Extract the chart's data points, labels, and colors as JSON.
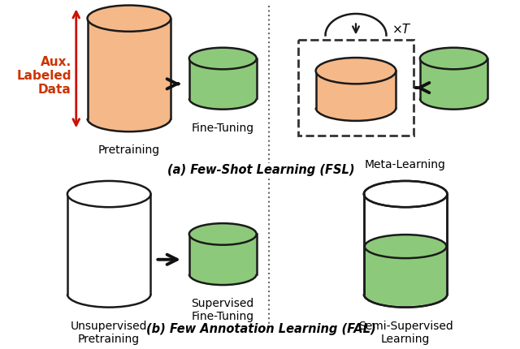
{
  "fig_width": 6.4,
  "fig_height": 4.31,
  "dpi": 100,
  "bg_color": "#ffffff",
  "orange_fill": "#F5B888",
  "green_fill": "#8DC97A",
  "white_fill": "#FFFFFF",
  "edge_color": "#1a1a1a",
  "red_color": "#CC1100",
  "aux_text_color": "#CC3300",
  "dotted_line_color": "#666666",
  "title_a": "(a) Few-Shot Learning (FSL)",
  "title_b": "(b) Few Annotation Learning (FAL)",
  "label_pretraining": "Pretraining",
  "label_finetuning": "Fine-Tuning",
  "label_metalearning": "Meta-Learning",
  "label_unsupervised": "Unsupervised\nPretraining",
  "label_supervised": "Supervised\nFine-Tuning",
  "label_semisupervised": "Semi-Supervised\nLearning",
  "aux_label": "Aux.\nLabeled\nData",
  "xt_label": "×T"
}
